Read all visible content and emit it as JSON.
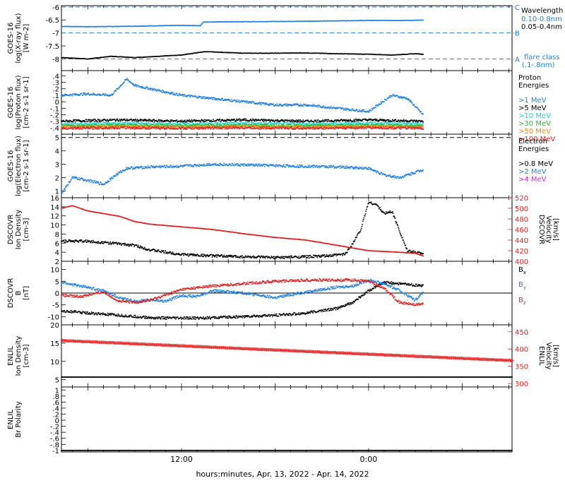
{
  "colors": {
    "axis": "#000000",
    "blue": "#1f7fe0",
    "black": "#000000",
    "red": "#e02020",
    "cyan": "#22d4d4",
    "green": "#2fb82f",
    "orange": "#ee8a1a",
    "magenta": "#e020e0",
    "lightblue": "#3aa0ff"
  },
  "xaxis": {
    "label": "hours:minutes, Apr. 13, 2022 - Apr. 14, 2022",
    "ticks": [
      {
        "t": 12,
        "label": "12:00"
      },
      {
        "t": 24,
        "label": "0:00"
      }
    ],
    "range_hours": [
      4.3,
      33.2
    ]
  },
  "chart_data": [
    {
      "type": "line",
      "panel": "xray",
      "ylabel": [
        "GOES-16",
        "log(X-ray flux)",
        "[W m-2]"
      ],
      "yticks": [
        -6.0,
        -6.5,
        -7.0,
        -7.5,
        -8.0
      ],
      "ylim": [
        -8.45,
        -5.95
      ],
      "thresholds": [
        {
          "y": -6.0,
          "label": "C"
        },
        {
          "y": -7.0,
          "label": "B"
        },
        {
          "y": -8.0,
          "label": "A"
        }
      ],
      "legend_title": "Wavelength",
      "flare_class_label": "flare class",
      "flare_class_range": "(.1-.8nm)",
      "series": [
        {
          "name": "0.10-0.8nm",
          "color": "blue",
          "x": [
            4.3,
            6,
            8,
            10,
            12,
            13.2,
            13.4,
            16,
            20,
            24,
            26,
            27.5
          ],
          "y": [
            -6.75,
            -6.76,
            -6.75,
            -6.73,
            -6.71,
            -6.72,
            -6.58,
            -6.57,
            -6.55,
            -6.52,
            -6.52,
            -6.51
          ]
        },
        {
          "name": "0.05-0.4nm",
          "color": "black",
          "x": [
            4.3,
            6,
            7.5,
            9,
            10.5,
            12,
            13.5,
            16,
            18,
            20,
            22,
            24,
            25.5,
            27,
            27.5
          ],
          "y": [
            -7.95,
            -8.0,
            -7.9,
            -7.95,
            -7.9,
            -7.85,
            -7.72,
            -7.78,
            -7.78,
            -7.77,
            -7.8,
            -7.82,
            -7.85,
            -7.8,
            -7.82
          ]
        }
      ]
    },
    {
      "type": "scatter",
      "panel": "proton",
      "ylabel": [
        "GOES-16",
        "log(Proton flux)",
        "[cm-2 s-1 sr-1]"
      ],
      "yticks": [
        0.4,
        0.3,
        0.2,
        0.1,
        0.0,
        -0.1,
        -0.2,
        -0.3,
        -0.4
      ],
      "ylim": [
        -0.5,
        0.48
      ],
      "legend_title": [
        "Proton",
        "Energies"
      ],
      "series": [
        {
          "name": ">1 MeV",
          "color": "blue",
          "x": [
            4.3,
            6,
            7.5,
            8.5,
            9,
            10,
            12,
            14,
            16,
            18,
            20,
            22,
            24,
            25.5,
            26.5,
            27.5
          ],
          "y": [
            0.1,
            0.12,
            0.1,
            0.35,
            0.25,
            0.2,
            0.1,
            0.05,
            0.0,
            -0.05,
            -0.05,
            -0.1,
            -0.15,
            0.1,
            0.05,
            -0.2
          ]
        },
        {
          "name": ">5 MeV",
          "color": "black",
          "x": [
            4.3,
            8,
            12,
            16,
            20,
            24,
            27.5
          ],
          "y": [
            -0.3,
            -0.28,
            -0.3,
            -0.28,
            -0.3,
            -0.28,
            -0.3
          ]
        },
        {
          "name": ">10 MeV",
          "color": "cyan",
          "x": [
            4.3,
            8,
            12,
            16,
            20,
            24,
            27.5
          ],
          "y": [
            -0.35,
            -0.33,
            -0.34,
            -0.33,
            -0.34,
            -0.33,
            -0.34
          ]
        },
        {
          "name": ">30 MeV",
          "color": "green",
          "x": [
            4.3,
            8,
            12,
            16,
            20,
            24,
            27.5
          ],
          "y": [
            -0.37,
            -0.36,
            -0.37,
            -0.36,
            -0.37,
            -0.36,
            -0.37
          ]
        },
        {
          "name": ">50 MeV",
          "color": "orange",
          "x": [
            4.3,
            8,
            12,
            16,
            20,
            24,
            27.5
          ],
          "y": [
            -0.39,
            -0.38,
            -0.39,
            -0.38,
            -0.39,
            -0.38,
            -0.39
          ]
        },
        {
          "name": ">100 MeV",
          "color": "red",
          "x": [
            4.3,
            8,
            12,
            16,
            20,
            24,
            27.5
          ],
          "y": [
            -0.41,
            -0.4,
            -0.41,
            -0.4,
            -0.41,
            -0.4,
            -0.41
          ]
        }
      ]
    },
    {
      "type": "scatter",
      "panel": "electron",
      "ylabel": [
        "GOES-16",
        "log(Electron flux)",
        "[cm-2 s-1 sr-1]"
      ],
      "yticks": [
        5,
        4,
        3,
        2,
        1
      ],
      "ylim": [
        0.5,
        5.25
      ],
      "dashed_level": 5,
      "legend_title": [
        "Electron",
        "Energies"
      ],
      "series": [
        {
          "name": ">0.8 MeV",
          "color": "black",
          "x": [],
          "y": []
        },
        {
          "name": ">2 MeV",
          "color": "blue",
          "x": [
            4.3,
            5,
            6,
            7,
            7.8,
            8.5,
            10,
            12,
            14,
            16,
            18,
            20,
            22,
            24,
            25,
            26,
            27,
            27.5
          ],
          "y": [
            0.8,
            2.0,
            1.8,
            1.5,
            2.2,
            2.7,
            2.8,
            2.85,
            3.0,
            2.95,
            2.9,
            2.85,
            2.8,
            2.7,
            2.2,
            2.0,
            2.4,
            2.6
          ]
        },
        {
          "name": ">4 MeV",
          "color": "magenta",
          "x": [],
          "y": []
        }
      ]
    },
    {
      "type": "scatter",
      "panel": "dscovr_plasma",
      "ylabel": [
        "DSCOVR",
        "Ion Density",
        "[cm-3]"
      ],
      "ylabel_right": [
        "DSCOVR",
        "Velocity",
        "[km/s]"
      ],
      "yticks": [
        16,
        14,
        12,
        10,
        8,
        6,
        4,
        2
      ],
      "ylim": [
        2,
        16
      ],
      "yticks_right": [
        520,
        500,
        480,
        460,
        440,
        420,
        400
      ],
      "ylim_right": [
        400,
        520
      ],
      "series": [
        {
          "name": "Ion Density",
          "color": "black",
          "x": [
            4.3,
            6,
            7.5,
            9,
            10,
            11,
            12,
            14,
            16,
            18,
            20,
            21.5,
            22.5,
            23,
            23.5,
            24,
            24.5,
            25,
            25.5,
            26.5,
            27.5
          ],
          "y": [
            6.5,
            6.4,
            6.0,
            5.5,
            4.5,
            4.0,
            3.5,
            3.2,
            3.0,
            2.8,
            3.0,
            3.2,
            3.6,
            6.0,
            9.0,
            15.0,
            14.5,
            12.5,
            13.0,
            4.2,
            3.8
          ]
        },
        {
          "name": "Velocity",
          "color": "red",
          "axis": "right",
          "x": [
            4.3,
            5,
            6,
            7,
            8,
            9,
            10,
            12,
            14,
            16,
            18,
            20,
            22,
            24,
            26,
            27,
            27.5
          ],
          "y": [
            500,
            505,
            495,
            490,
            485,
            475,
            470,
            465,
            460,
            452,
            445,
            440,
            430,
            420,
            417,
            415,
            410
          ]
        }
      ]
    },
    {
      "type": "scatter",
      "panel": "dscovr_mag",
      "ylabel": [
        "DSCOVR",
        "B",
        "[nT]"
      ],
      "yticks": [
        10,
        5,
        0,
        -5,
        -10
      ],
      "ylim": [
        -13.5,
        13.5
      ],
      "zero_line": 0,
      "series": [
        {
          "name": "Bx",
          "color": "black",
          "x": [
            4.3,
            6,
            8,
            10,
            12,
            14,
            16,
            18,
            20,
            22,
            23,
            24,
            25,
            26,
            27.5
          ],
          "y": [
            -7.5,
            -8.5,
            -9.5,
            -10.5,
            -10.7,
            -10.5,
            -10,
            -9.5,
            -8.5,
            -6.5,
            -4,
            1,
            4.5,
            4,
            3
          ]
        },
        {
          "name": "By",
          "color": "blue",
          "x": [
            4.3,
            5.5,
            7,
            8,
            9,
            10,
            11,
            12,
            13,
            14,
            16,
            18,
            20,
            22,
            23,
            24,
            25,
            26,
            27,
            27.5
          ],
          "y": [
            4.5,
            3,
            1,
            -2,
            -3.5,
            -3,
            -3.5,
            -1,
            -1.5,
            1,
            0,
            -2,
            0.5,
            2.5,
            3,
            5.5,
            4,
            1,
            -3,
            0.5
          ]
        },
        {
          "name": "Bz",
          "color": "red",
          "x": [
            4.3,
            5.5,
            7,
            8,
            9,
            10,
            12,
            14,
            16,
            18,
            20,
            22,
            23,
            24,
            25,
            26,
            27,
            27.5
          ],
          "y": [
            -1,
            -1.5,
            0.5,
            -3.5,
            -4,
            -3,
            1.5,
            3,
            4,
            5,
            5.5,
            5.5,
            5.5,
            5,
            2,
            -4,
            -5,
            -4.5
          ]
        }
      ]
    },
    {
      "type": "scatter",
      "panel": "enlil_plasma",
      "ylabel": [
        "ENLIL",
        "Ion Density",
        "[cm-3]"
      ],
      "ylabel_right": [
        "ENLIL",
        "Velocity",
        "[km/s]"
      ],
      "yticks": [
        20,
        15,
        10,
        5
      ],
      "ylim": [
        3,
        20
      ],
      "yticks_right": [
        450,
        400,
        350,
        300
      ],
      "ylim_right": [
        290,
        470
      ],
      "series": [
        {
          "name": "Ion Density",
          "color": "black",
          "x": [
            4.3,
            33.2
          ],
          "y": [
            5.7,
            5.7
          ]
        },
        {
          "name": "Velocity",
          "color": "red",
          "axis": "right",
          "x": [
            4.3,
            33.2
          ],
          "y": [
            426,
            368
          ]
        }
      ]
    },
    {
      "type": "scatter",
      "panel": "enlil_polarity",
      "ylabel": [
        "ENLIL",
        "Br Polarity"
      ],
      "yticks": [
        1.0,
        0.8,
        0.6,
        0.4,
        0.2,
        0.0,
        -0.2,
        -0.4,
        -0.6,
        -0.8,
        -1.0
      ],
      "ylim": [
        -1.05,
        1.1
      ],
      "series": [
        {
          "name": "Br Polarity",
          "color": "black",
          "x": [
            4.3,
            33.2
          ],
          "y": [
            -1.0,
            -1.0
          ]
        }
      ]
    }
  ]
}
